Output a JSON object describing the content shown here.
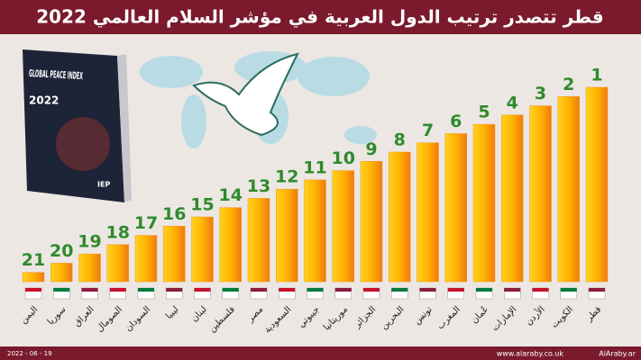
{
  "header": {
    "title": "قطر تتصدر ترتيب الدول العربية في مؤشر السلام العالمي 2022"
  },
  "book": {
    "title": "GLOBAL PEACE INDEX",
    "year": "2022",
    "publisher": "IEP"
  },
  "chart_data": {
    "type": "bar",
    "categories": [
      "اليمن",
      "سوريا",
      "العراق",
      "الصومال",
      "السودان",
      "ليبيا",
      "لبنان",
      "فلسطين",
      "مصر",
      "السعودية",
      "جيبوتي",
      "موريتانيا",
      "الجزائر",
      "البحرين",
      "تونس",
      "المغرب",
      "عُمان",
      "الإمارات",
      "الأردن",
      "الكويت",
      "قطر"
    ],
    "values": [
      21,
      20,
      19,
      18,
      17,
      16,
      15,
      14,
      13,
      12,
      11,
      10,
      9,
      8,
      7,
      6,
      5,
      4,
      3,
      2,
      1
    ],
    "color": "#f7931e"
  },
  "footer": {
    "date": "2022 - 06 - 19",
    "website": "www.alaraby.co.uk",
    "social": "AlAraby.ar"
  }
}
